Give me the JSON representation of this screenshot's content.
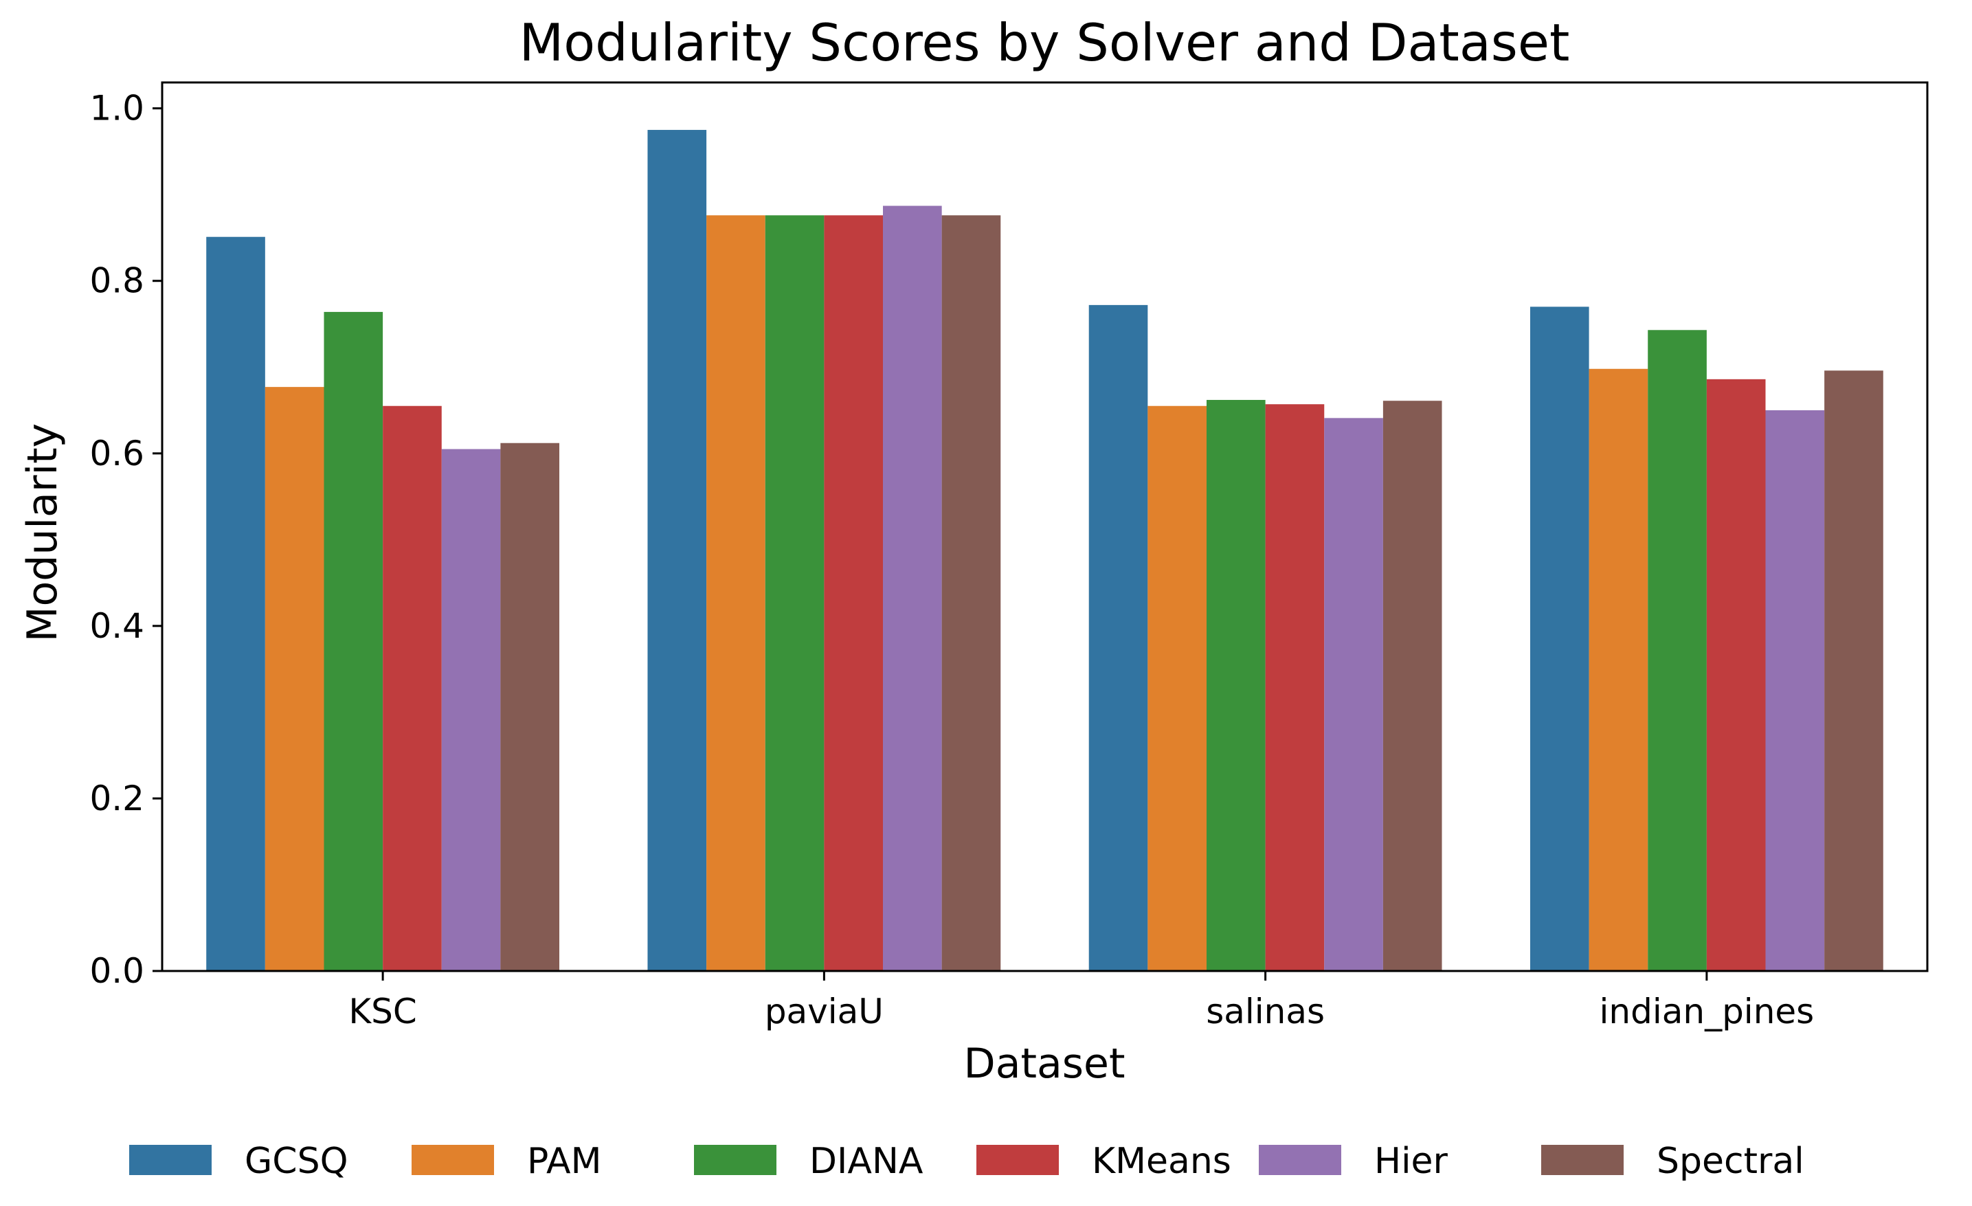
{
  "chart_data": {
    "type": "bar",
    "title": "Modularity Scores by Solver and Dataset",
    "xlabel": "Dataset",
    "ylabel": "Modularity",
    "categories": [
      "KSC",
      "paviaU",
      "salinas",
      "indian_pines"
    ],
    "series": [
      {
        "name": "GCSQ",
        "color": "#3274a1",
        "values": [
          0.851,
          0.975,
          0.772,
          0.77
        ]
      },
      {
        "name": "PAM",
        "color": "#e1812c",
        "values": [
          0.677,
          0.876,
          0.655,
          0.698
        ]
      },
      {
        "name": "DIANA",
        "color": "#3a923a",
        "values": [
          0.764,
          0.876,
          0.662,
          0.743
        ]
      },
      {
        "name": "KMeans",
        "color": "#c03d3e",
        "values": [
          0.655,
          0.876,
          0.657,
          0.686
        ]
      },
      {
        "name": "Hier",
        "color": "#9372b2",
        "values": [
          0.605,
          0.887,
          0.641,
          0.65
        ]
      },
      {
        "name": "Spectral",
        "color": "#845b53",
        "values": [
          0.612,
          0.876,
          0.661,
          0.696
        ]
      }
    ],
    "ylim": [
      0,
      1.03
    ],
    "yticks": [
      "0.0",
      "0.2",
      "0.4",
      "0.6",
      "0.8",
      "1.0"
    ],
    "grid": false,
    "legend_position": "bottom"
  }
}
